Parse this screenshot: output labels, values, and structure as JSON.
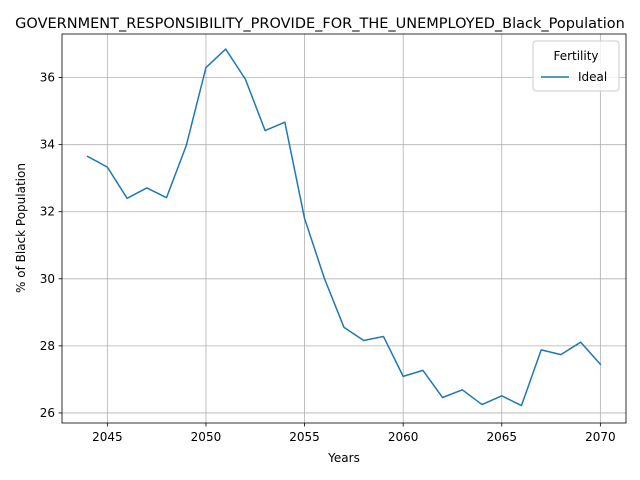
{
  "chart_data": {
    "type": "line",
    "title": "GOVERNMENT_RESPONSIBILITY_PROVIDE_FOR_THE_UNEMPLOYED_Black_Population",
    "xlabel": "Years",
    "ylabel": "% of Black Population",
    "xlim": [
      2042.7,
      2071.3
    ],
    "ylim": [
      25.7,
      37.3
    ],
    "xticks": [
      2045,
      2050,
      2055,
      2060,
      2065,
      2070
    ],
    "yticks": [
      26,
      28,
      30,
      32,
      34,
      36
    ],
    "grid": true,
    "legend": {
      "title": "Fertility",
      "placement": "top-right"
    },
    "series": [
      {
        "name": "Ideal",
        "color": "#1f77b4",
        "x": [
          2044,
          2045,
          2046,
          2047,
          2048,
          2049,
          2050,
          2051,
          2052,
          2053,
          2054,
          2055,
          2056,
          2057,
          2058,
          2059,
          2060,
          2061,
          2062,
          2063,
          2064,
          2065,
          2066,
          2067,
          2068,
          2069,
          2070
        ],
        "y": [
          33.65,
          33.33,
          32.4,
          32.71,
          32.42,
          33.97,
          36.3,
          36.85,
          35.95,
          34.42,
          34.67,
          31.8,
          30.02,
          28.55,
          28.16,
          28.28,
          27.09,
          27.27,
          26.46,
          26.69,
          26.25,
          26.51,
          26.22,
          27.88,
          27.74,
          28.11,
          27.45
        ]
      }
    ]
  }
}
